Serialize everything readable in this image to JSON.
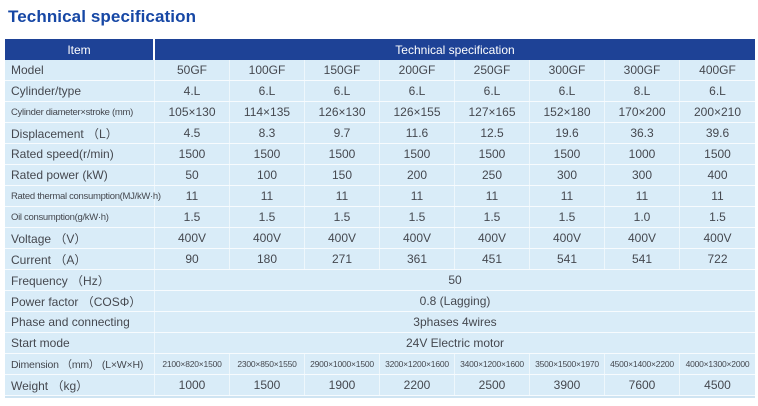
{
  "page_title": "Technical specification",
  "colors": {
    "title_blue": "#1647a5",
    "header_navy": "#1e4296",
    "row_light_blue": "#d9ecf8",
    "separator_white": "#f7fbfe",
    "body_text": "#45484f"
  },
  "table": {
    "header": {
      "item_label": "Item",
      "span_label": "Technical specification"
    },
    "rows": [
      {
        "label": "Model",
        "values": [
          "50GF",
          "100GF",
          "150GF",
          "200GF",
          "250GF",
          "300GF",
          "300GF",
          "400GF"
        ]
      },
      {
        "label": "Cylinder/type",
        "values": [
          "4.L",
          "6.L",
          "6.L",
          "6.L",
          "6.L",
          "6.L",
          "8.L",
          "6.L"
        ]
      },
      {
        "label": "Cylinder diameter×stroke (mm)",
        "small_label": true,
        "values": [
          "105×130",
          "114×135",
          "126×130",
          "126×155",
          "127×165",
          "152×180",
          "170×200",
          "200×210"
        ]
      },
      {
        "label": "Displacement （L）",
        "values": [
          "4.5",
          "8.3",
          "9.7",
          "11.6",
          "12.5",
          "19.6",
          "36.3",
          "39.6"
        ]
      },
      {
        "label": "Rated speed(r/min)",
        "values": [
          "1500",
          "1500",
          "1500",
          "1500",
          "1500",
          "1500",
          "1000",
          "1500"
        ]
      },
      {
        "label": "Rated power (kW)",
        "values": [
          "50",
          "100",
          "150",
          "200",
          "250",
          "300",
          "300",
          "400"
        ]
      },
      {
        "label": "Rated thermal consumption(MJ/kW·h)",
        "small_label": true,
        "values": [
          "11",
          "11",
          "11",
          "11",
          "11",
          "11",
          "11",
          "11"
        ]
      },
      {
        "label": "Oil consumption(g/kW·h)",
        "small_label": true,
        "values": [
          "1.5",
          "1.5",
          "1.5",
          "1.5",
          "1.5",
          "1.5",
          "1.0",
          "1.5"
        ]
      },
      {
        "label": "Voltage （V）",
        "values": [
          "400V",
          "400V",
          "400V",
          "400V",
          "400V",
          "400V",
          "400V",
          "400V"
        ]
      },
      {
        "label": "Current （A）",
        "values": [
          "90",
          "180",
          "271",
          "361",
          "451",
          "541",
          "541",
          "722"
        ]
      },
      {
        "label": "Frequency （Hz）",
        "span_value": "50"
      },
      {
        "label": "Power factor （COSΦ）",
        "span_value": "0.8 (Lagging)"
      },
      {
        "label": "Phase and connecting",
        "span_value": "3phases 4wires"
      },
      {
        "label": "Start mode",
        "span_value": "24V Electric motor"
      },
      {
        "label": "Dimension （mm） (L×W×H)",
        "mid_label": true,
        "small_values": true,
        "values": [
          "2100×820×1500",
          "2300×850×1550",
          "2900×1000×1500",
          "3200×1200×1600",
          "3400×1200×1600",
          "3500×1500×1970",
          "4500×1400×2200",
          "4000×1300×2000"
        ]
      },
      {
        "label": "Weight （kg）",
        "values": [
          "1000",
          "1500",
          "1900",
          "2200",
          "2500",
          "3900",
          "7600",
          "4500"
        ]
      }
    ]
  }
}
